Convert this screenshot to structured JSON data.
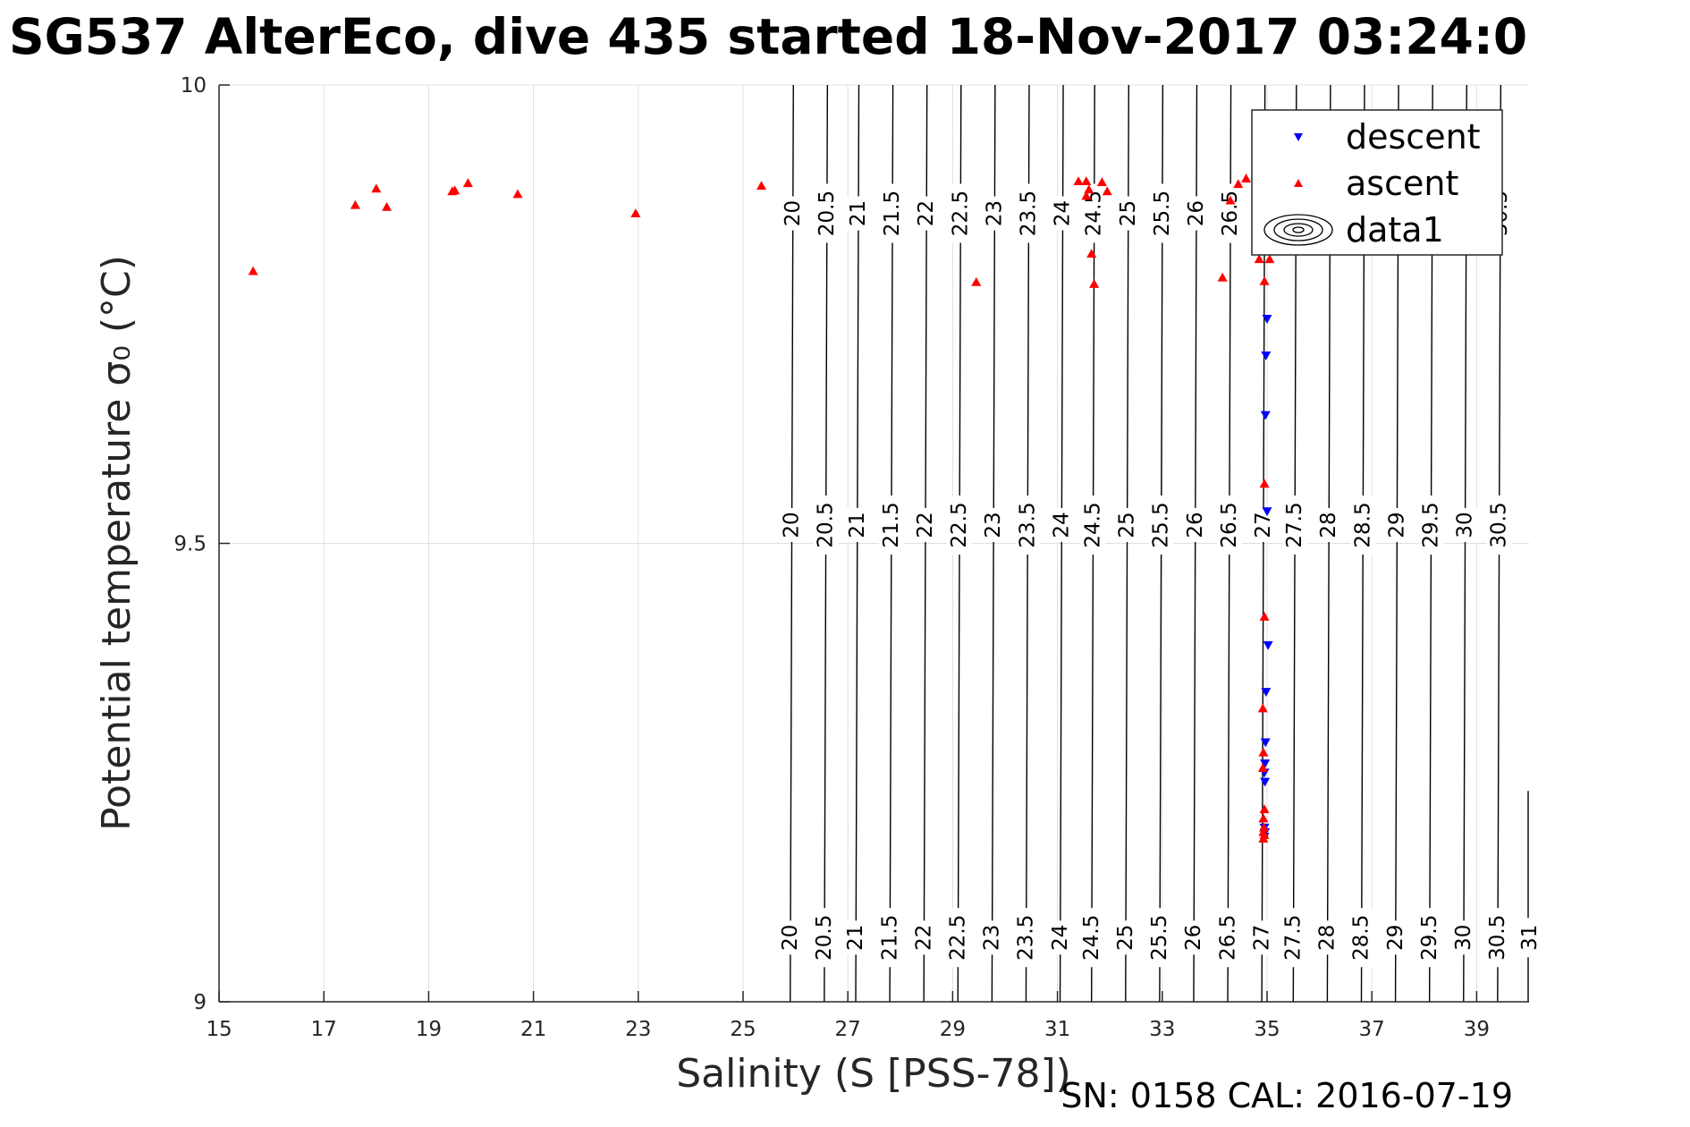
{
  "chart_data": {
    "type": "scatter",
    "title": "SG537 AlterEco, dive 435 started 18-Nov-2017 03:24:0",
    "xlabel": "Salinity (S [PSS-78])",
    "ylabel": "Potential temperature σ₀ (°C)",
    "xlim": [
      15,
      40
    ],
    "ylim": [
      9,
      10
    ],
    "xticks": [
      "15",
      "17",
      "19",
      "21",
      "23",
      "25",
      "27",
      "29",
      "31",
      "33",
      "35",
      "37",
      "39"
    ],
    "yticks": [
      "9",
      "9.5",
      "10"
    ],
    "grid": true,
    "legend_position": "top-right",
    "legend": [
      {
        "name": "descent",
        "marker": "triangle-down",
        "color": "#0000ff"
      },
      {
        "name": "ascent",
        "marker": "triangle-up",
        "color": "#ff0000"
      },
      {
        "name": "data1",
        "marker": "contour",
        "color": "#000000"
      }
    ],
    "contour_levels": [
      "20",
      "20.5",
      "21",
      "21.5",
      "22",
      "22.5",
      "23",
      "23.5",
      "24",
      "24.5",
      "25",
      "25.5",
      "26",
      "26.5",
      "27",
      "27.5",
      "28",
      "28.5",
      "29",
      "29.5",
      "30",
      "30.5",
      "31"
    ],
    "contour_bottom_salinity": [
      25.9,
      26.55,
      27.15,
      27.8,
      28.45,
      29.1,
      29.75,
      30.4,
      31.05,
      31.65,
      32.3,
      32.95,
      33.6,
      34.25,
      34.9,
      35.5,
      36.15,
      36.8,
      37.45,
      38.1,
      38.75,
      39.4,
      40.0
    ],
    "series": [
      {
        "name": "descent",
        "points": [
          [
            35.0,
            9.745
          ],
          [
            34.98,
            9.705
          ],
          [
            34.97,
            9.64
          ],
          [
            35.0,
            9.535
          ],
          [
            35.02,
            9.389
          ],
          [
            34.98,
            9.338
          ],
          [
            34.97,
            9.283
          ],
          [
            34.96,
            9.26
          ],
          [
            34.95,
            9.25
          ],
          [
            34.96,
            9.24
          ],
          [
            34.95,
            9.19
          ],
          [
            34.96,
            9.185
          ],
          [
            34.95,
            9.18
          ]
        ]
      },
      {
        "name": "ascent",
        "points": [
          [
            15.65,
            9.797
          ],
          [
            17.6,
            9.869
          ],
          [
            18.0,
            9.887
          ],
          [
            18.2,
            9.867
          ],
          [
            19.45,
            9.884
          ],
          [
            19.5,
            9.885
          ],
          [
            19.75,
            9.893
          ],
          [
            20.7,
            9.881
          ],
          [
            22.95,
            9.86
          ],
          [
            25.35,
            9.89
          ],
          [
            29.45,
            9.785
          ],
          [
            31.4,
            9.895
          ],
          [
            31.55,
            9.895
          ],
          [
            31.6,
            9.886
          ],
          [
            31.55,
            9.879
          ],
          [
            31.85,
            9.894
          ],
          [
            31.95,
            9.884
          ],
          [
            31.65,
            9.816
          ],
          [
            31.7,
            9.783
          ],
          [
            34.15,
            9.79
          ],
          [
            34.3,
            9.874
          ],
          [
            34.45,
            9.892
          ],
          [
            34.6,
            9.898
          ],
          [
            34.85,
            9.81
          ],
          [
            34.95,
            9.786
          ],
          [
            35.05,
            9.81
          ],
          [
            34.95,
            9.565
          ],
          [
            34.95,
            9.42
          ],
          [
            34.92,
            9.32
          ],
          [
            34.93,
            9.272
          ],
          [
            34.92,
            9.255
          ],
          [
            34.95,
            9.21
          ],
          [
            34.93,
            9.2
          ],
          [
            34.94,
            9.19
          ],
          [
            34.93,
            9.185
          ],
          [
            34.95,
            9.182
          ],
          [
            34.93,
            9.178
          ]
        ]
      }
    ]
  },
  "footer": {
    "sn_cal": "SN: 0158  CAL: 2016-07-19"
  }
}
